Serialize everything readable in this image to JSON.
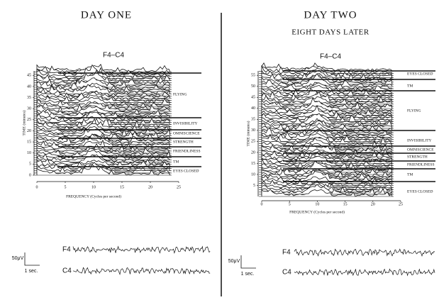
{
  "panels": [
    {
      "title": "DAY ONE",
      "electrode": "F4–C4",
      "ylabel": "TIME (minutes)",
      "xlabel": "FREQUENCY (Cycles per second)",
      "ylim": [
        0,
        47
      ],
      "yticks": [
        0,
        5,
        10,
        15,
        20,
        25,
        30,
        35,
        40,
        45
      ],
      "xlim": [
        0,
        25
      ],
      "xticks": [
        0,
        5,
        10,
        15,
        20,
        25
      ],
      "states": [
        "FLYING",
        "INVISIBILITY",
        "OMNISCIENCE",
        "STRENGTH",
        "FRIENDLINESS",
        "TM",
        "EYES CLOSED"
      ],
      "eeg": {
        "scale": "50μV",
        "time": "1 sec.",
        "channels": [
          "F4",
          "C4"
        ]
      }
    },
    {
      "title": "DAY TWO",
      "subtitle": "EIGHT DAYS LATER",
      "electrode": "F4–C4",
      "ylabel": "TIME (minutes)",
      "xlabel": "FREQUENCY (Cycles per second)",
      "ylim": [
        0,
        57
      ],
      "yticks": [
        5,
        10,
        15,
        20,
        25,
        30,
        35,
        40,
        45,
        50,
        55
      ],
      "xlim": [
        0,
        25
      ],
      "xticks": [
        0,
        5,
        10,
        15,
        20,
        25
      ],
      "states": [
        "EYES CLOSED",
        "TM",
        "FLYING",
        "INVISIBILITY",
        "OMNISCIENCE",
        "STRENGTH",
        "FRIENDLINESS",
        "TM",
        "EYES CLOSED"
      ],
      "eeg": {
        "scale": "50μV",
        "time": "1 sec.",
        "channels": [
          "F4",
          "C4"
        ]
      }
    }
  ]
}
